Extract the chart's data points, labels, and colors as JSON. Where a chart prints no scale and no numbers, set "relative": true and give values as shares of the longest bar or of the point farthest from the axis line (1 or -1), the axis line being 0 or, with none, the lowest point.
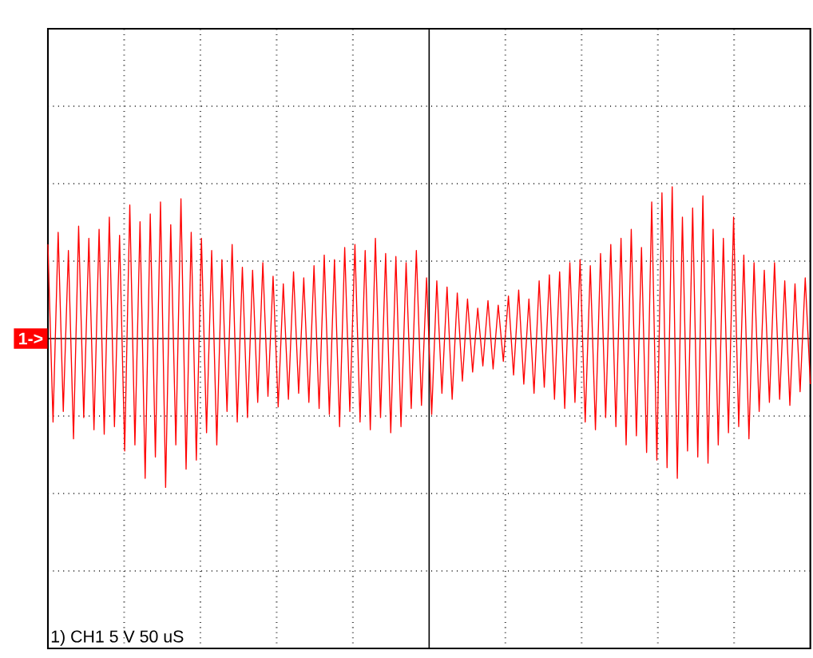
{
  "chart_data": {
    "type": "line",
    "relative": true,
    "grid": true,
    "categories": [
      null,
      null,
      null,
      null,
      null,
      null,
      null,
      null,
      null,
      null,
      null,
      null,
      null,
      null,
      null,
      null,
      null,
      null,
      null,
      null,
      null,
      null,
      null,
      null,
      null,
      null,
      null,
      null,
      null,
      null,
      null,
      null,
      null,
      null,
      null,
      null,
      null,
      null,
      null,
      null,
      null,
      null,
      null,
      null,
      null,
      null,
      null,
      null,
      null,
      null,
      null,
      null,
      null,
      null,
      null,
      null,
      null,
      null,
      null,
      null,
      null,
      null,
      null,
      null,
      null,
      null,
      null,
      null,
      null,
      null,
      null,
      null,
      null,
      null,
      null,
      null,
      null,
      null,
      null,
      null,
      null,
      null,
      null,
      null,
      null,
      null,
      null,
      null,
      null,
      null,
      null,
      null,
      null,
      null,
      null,
      null,
      null,
      null,
      null,
      null,
      null,
      null,
      null,
      null,
      null,
      null,
      null,
      null,
      null,
      null,
      null,
      null,
      null,
      null,
      null,
      null,
      null,
      null,
      null,
      null,
      null,
      null,
      null,
      null,
      null,
      null,
      null,
      null,
      null,
      null,
      null,
      null,
      null,
      null,
      null,
      null,
      null,
      null,
      null,
      null,
      null,
      null,
      null,
      null,
      null,
      null,
      null,
      null,
      null,
      null
    ],
    "series": [
      {
        "color": "#ff0000",
        "values": [
          0.62,
          -0.55,
          0.7,
          -0.48,
          0.58,
          -0.66,
          0.74,
          -0.52,
          0.66,
          -0.6,
          0.72,
          -0.63,
          0.8,
          -0.58,
          0.68,
          -0.74,
          0.88,
          -0.7,
          0.77,
          -0.92,
          0.82,
          -0.78,
          0.9,
          -0.98,
          0.75,
          -0.7,
          0.92,
          -0.86,
          0.7,
          -0.8,
          0.66,
          -0.62,
          0.58,
          -0.7,
          0.52,
          -0.48,
          0.62,
          -0.55,
          0.47,
          -0.52,
          0.45,
          -0.42,
          0.5,
          -0.38,
          0.41,
          -0.45,
          0.36,
          -0.4,
          0.44,
          -0.36,
          0.4,
          -0.42,
          0.48,
          -0.46,
          0.55,
          -0.5,
          0.52,
          -0.58,
          0.6,
          -0.48,
          0.62,
          -0.55,
          0.58,
          -0.6,
          0.66,
          -0.52,
          0.56,
          -0.62,
          0.54,
          -0.58,
          0.5,
          -0.46,
          0.58,
          -0.44,
          0.4,
          -0.5,
          0.38,
          -0.36,
          0.34,
          -0.4,
          0.3,
          -0.28,
          0.26,
          -0.22,
          0.2,
          -0.18,
          0.25,
          -0.2,
          0.22,
          -0.15,
          0.28,
          -0.24,
          0.32,
          -0.3,
          0.26,
          -0.36,
          0.38,
          -0.32,
          0.42,
          -0.4,
          0.44,
          -0.46,
          0.5,
          -0.42,
          0.52,
          -0.55,
          0.48,
          -0.6,
          0.56,
          -0.52,
          0.62,
          -0.58,
          0.66,
          -0.7,
          0.72,
          -0.64,
          0.6,
          -0.75,
          0.9,
          -0.8,
          0.96,
          -0.85,
          1.0,
          -0.92,
          0.8,
          -0.74,
          0.86,
          -0.78,
          0.94,
          -0.82,
          0.72,
          -0.7,
          0.66,
          -0.62,
          0.8,
          -0.58,
          0.55,
          -0.66,
          0.5,
          -0.48,
          0.45,
          -0.42,
          0.5,
          -0.4,
          0.38,
          -0.44,
          0.36,
          -0.35,
          0.4,
          -0.3
        ]
      }
    ],
    "annotations": [
      {
        "text": "1->",
        "y": 0
      },
      "1) CH1 5 V 50 uS"
    ]
  }
}
